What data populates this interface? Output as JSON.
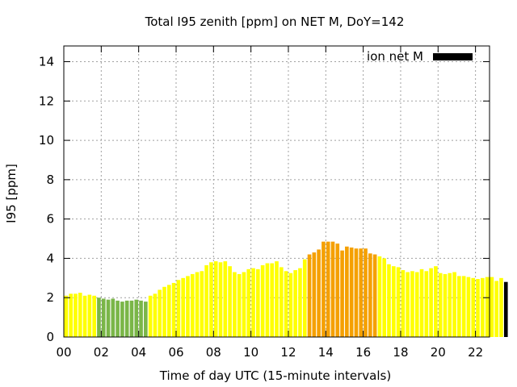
{
  "chart_data": {
    "type": "bar",
    "title": "Total I95 zenith [ppm] on NET M, DoY=142",
    "xlabel": "Time of day UTC (15-minute intervals)",
    "ylabel": "I95 [ppm]",
    "x_tick_labels": [
      "00",
      "02",
      "04",
      "06",
      "08",
      "10",
      "12",
      "14",
      "16",
      "18",
      "20",
      "22"
    ],
    "x_tick_hours": [
      0,
      2,
      4,
      6,
      8,
      10,
      12,
      14,
      16,
      18,
      20,
      22
    ],
    "y_ticks": [
      0,
      2,
      4,
      6,
      8,
      10,
      12,
      14
    ],
    "xlim": [
      0,
      22.75
    ],
    "ylim": [
      0,
      14.8
    ],
    "grid": true,
    "legend": {
      "label": "ion net M",
      "color": "#000000",
      "placement": "top-right"
    },
    "colors": {
      "yellow": "#ffff00",
      "green": "#7ab648",
      "orange": "#f5a000"
    },
    "bin_hours": 0.25,
    "series": [
      {
        "values": [
          2.1,
          2.2,
          2.2,
          2.25,
          2.1,
          2.15,
          2.1,
          2.0,
          1.95,
          1.9,
          1.95,
          1.85,
          1.8,
          1.85,
          1.85,
          1.9,
          1.85,
          1.8,
          2.1,
          2.2,
          2.4,
          2.55,
          2.65,
          2.75,
          2.9,
          3.0,
          3.1,
          3.2,
          3.3,
          3.35,
          3.65,
          3.8,
          3.85,
          3.8,
          3.85,
          3.6,
          3.3,
          3.2,
          3.3,
          3.45,
          3.5,
          3.45,
          3.65,
          3.75,
          3.75,
          3.85,
          3.55,
          3.35,
          3.25,
          3.4,
          3.5,
          3.95,
          4.2,
          4.3,
          4.45,
          4.85,
          4.85,
          4.85,
          4.75,
          4.4,
          4.6,
          4.55,
          4.5,
          4.5,
          4.5,
          4.25,
          4.2,
          4.1,
          4.0,
          3.7,
          3.6,
          3.55,
          3.4,
          3.3,
          3.35,
          3.3,
          3.45,
          3.35,
          3.5,
          3.6,
          3.25,
          3.2,
          3.25,
          3.3,
          3.1,
          3.1,
          3.05,
          3.0,
          2.95,
          3.0,
          3.05,
          3.05,
          2.85,
          3.0,
          2.8
        ],
        "color_class": [
          "yellow",
          "yellow",
          "yellow",
          "yellow",
          "yellow",
          "yellow",
          "yellow",
          "green",
          "green",
          "green",
          "green",
          "green",
          "green",
          "green",
          "green",
          "green",
          "green",
          "green",
          "yellow",
          "yellow",
          "yellow",
          "yellow",
          "yellow",
          "yellow",
          "yellow",
          "yellow",
          "yellow",
          "yellow",
          "yellow",
          "yellow",
          "yellow",
          "yellow",
          "yellow",
          "yellow",
          "yellow",
          "yellow",
          "yellow",
          "yellow",
          "yellow",
          "yellow",
          "yellow",
          "yellow",
          "yellow",
          "yellow",
          "yellow",
          "yellow",
          "yellow",
          "yellow",
          "yellow",
          "yellow",
          "yellow",
          "yellow",
          "orange",
          "orange",
          "orange",
          "orange",
          "orange",
          "orange",
          "orange",
          "orange",
          "orange",
          "orange",
          "orange",
          "orange",
          "orange",
          "orange",
          "orange",
          "yellow",
          "yellow",
          "yellow",
          "yellow",
          "yellow",
          "yellow",
          "yellow",
          "yellow",
          "yellow",
          "yellow",
          "yellow",
          "yellow",
          "yellow",
          "yellow",
          "yellow",
          "yellow",
          "yellow",
          "yellow",
          "yellow",
          "yellow",
          "yellow",
          "yellow",
          "yellow",
          "yellow",
          "yellow",
          "yellow",
          "yellow"
        ]
      }
    ]
  }
}
